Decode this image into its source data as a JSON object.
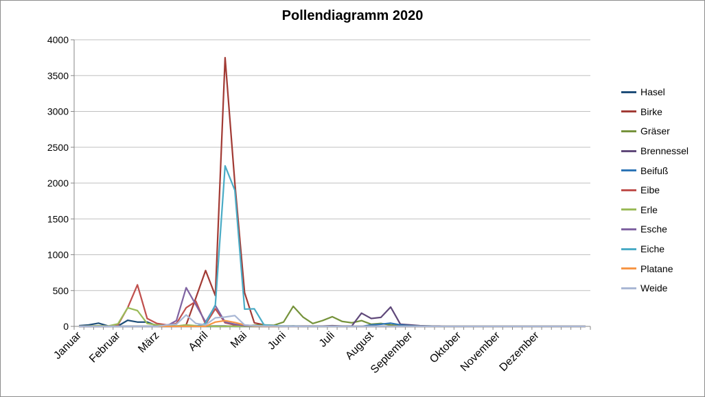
{
  "chart_data": {
    "type": "line",
    "title": "Pollendiagramm 2020",
    "ylim": [
      0,
      4000
    ],
    "yticks": [
      0,
      500,
      1000,
      1500,
      2000,
      2500,
      3000,
      3500,
      4000
    ],
    "x_points": 53,
    "months": [
      "Januar",
      "Februar",
      "März",
      "April",
      "Mai",
      "Juni",
      "Juli",
      "August",
      "September",
      "Oktober",
      "November",
      "Dezember"
    ],
    "month_start_index": [
      0,
      4,
      8,
      13,
      17,
      21,
      26,
      30,
      34,
      39,
      43,
      47
    ],
    "grid": true,
    "legend_position": "right",
    "series": [
      {
        "name": "Hasel",
        "color": "#1f4e79",
        "values": [
          10,
          20,
          45,
          5,
          5,
          85,
          60,
          60,
          10,
          10,
          5,
          5,
          5,
          5,
          5,
          5,
          0,
          0,
          0,
          0,
          0,
          0,
          0,
          0,
          0,
          0,
          0,
          0,
          0,
          0,
          0,
          0,
          0,
          0,
          0,
          0,
          0,
          0,
          0,
          0,
          0,
          0,
          0,
          0,
          0,
          0,
          0,
          0,
          0,
          0,
          0,
          0,
          0
        ]
      },
      {
        "name": "Birke",
        "color": "#a23b35",
        "values": [
          0,
          0,
          0,
          0,
          0,
          0,
          0,
          0,
          0,
          0,
          0,
          20,
          400,
          780,
          430,
          3750,
          2000,
          470,
          50,
          20,
          5,
          5,
          5,
          0,
          0,
          0,
          0,
          0,
          0,
          0,
          0,
          0,
          0,
          0,
          0,
          0,
          0,
          0,
          0,
          0,
          0,
          0,
          0,
          0,
          0,
          0,
          0,
          0,
          0,
          0,
          0,
          0,
          0
        ]
      },
      {
        "name": "Gräser",
        "color": "#76933c",
        "values": [
          0,
          0,
          0,
          0,
          0,
          0,
          0,
          0,
          0,
          0,
          0,
          0,
          0,
          0,
          0,
          0,
          5,
          10,
          15,
          20,
          15,
          60,
          280,
          130,
          40,
          80,
          135,
          70,
          50,
          80,
          30,
          40,
          20,
          10,
          5,
          5,
          5,
          0,
          0,
          0,
          0,
          0,
          0,
          0,
          0,
          0,
          0,
          0,
          0,
          0,
          0,
          0,
          0
        ]
      },
      {
        "name": "Brennessel",
        "color": "#60497a",
        "values": [
          0,
          0,
          0,
          0,
          0,
          0,
          0,
          0,
          0,
          0,
          0,
          0,
          0,
          0,
          0,
          0,
          0,
          0,
          0,
          0,
          0,
          0,
          5,
          5,
          5,
          5,
          10,
          5,
          5,
          185,
          110,
          125,
          270,
          30,
          20,
          10,
          5,
          5,
          0,
          0,
          0,
          0,
          0,
          0,
          0,
          0,
          0,
          0,
          0,
          0,
          0,
          0,
          0
        ]
      },
      {
        "name": "Beifuß",
        "color": "#2e75b6",
        "values": [
          0,
          0,
          0,
          0,
          0,
          0,
          0,
          0,
          0,
          0,
          0,
          0,
          0,
          0,
          0,
          0,
          0,
          0,
          0,
          0,
          0,
          0,
          0,
          0,
          0,
          0,
          0,
          0,
          0,
          0,
          20,
          30,
          45,
          20,
          10,
          5,
          5,
          0,
          0,
          0,
          0,
          0,
          0,
          0,
          0,
          0,
          0,
          0,
          0,
          0,
          0,
          0,
          0
        ]
      },
      {
        "name": "Eibe",
        "color": "#c0504d",
        "values": [
          0,
          0,
          0,
          0,
          20,
          260,
          580,
          110,
          40,
          20,
          40,
          260,
          350,
          30,
          245,
          50,
          20,
          5,
          0,
          0,
          0,
          0,
          0,
          0,
          0,
          0,
          0,
          0,
          0,
          0,
          0,
          0,
          0,
          0,
          0,
          0,
          0,
          0,
          0,
          0,
          0,
          0,
          0,
          0,
          0,
          0,
          0,
          0,
          0,
          0,
          0,
          0,
          0
        ]
      },
      {
        "name": "Erle",
        "color": "#9bbb59",
        "values": [
          0,
          5,
          10,
          5,
          35,
          260,
          220,
          40,
          20,
          10,
          5,
          20,
          10,
          5,
          0,
          0,
          0,
          0,
          0,
          0,
          0,
          0,
          0,
          0,
          0,
          0,
          0,
          0,
          0,
          0,
          0,
          0,
          0,
          0,
          0,
          0,
          0,
          0,
          0,
          0,
          0,
          0,
          0,
          0,
          0,
          0,
          0,
          0,
          0,
          0,
          0,
          0,
          0
        ]
      },
      {
        "name": "Esche",
        "color": "#8064a2",
        "values": [
          0,
          0,
          0,
          0,
          0,
          0,
          0,
          0,
          0,
          5,
          80,
          540,
          300,
          60,
          290,
          60,
          30,
          10,
          5,
          0,
          0,
          0,
          0,
          0,
          0,
          0,
          0,
          0,
          0,
          0,
          0,
          0,
          0,
          0,
          0,
          0,
          0,
          0,
          0,
          0,
          0,
          0,
          0,
          0,
          0,
          0,
          0,
          0,
          0,
          0,
          0,
          0,
          0
        ]
      },
      {
        "name": "Eiche",
        "color": "#4bacc6",
        "values": [
          0,
          0,
          0,
          0,
          0,
          0,
          0,
          0,
          0,
          0,
          0,
          0,
          0,
          40,
          300,
          2240,
          1900,
          240,
          245,
          20,
          10,
          5,
          5,
          0,
          0,
          0,
          0,
          0,
          0,
          0,
          0,
          0,
          0,
          0,
          0,
          0,
          0,
          0,
          0,
          0,
          0,
          0,
          0,
          0,
          0,
          0,
          0,
          0,
          0,
          0,
          0,
          0,
          0
        ]
      },
      {
        "name": "Platane",
        "color": "#f79646",
        "values": [
          0,
          0,
          0,
          0,
          0,
          0,
          0,
          0,
          0,
          0,
          0,
          0,
          0,
          0,
          60,
          80,
          55,
          20,
          5,
          0,
          0,
          0,
          0,
          0,
          0,
          0,
          0,
          0,
          0,
          0,
          0,
          0,
          0,
          0,
          0,
          0,
          0,
          0,
          0,
          0,
          0,
          0,
          0,
          0,
          0,
          0,
          0,
          0,
          0,
          0,
          0,
          0,
          0
        ]
      },
      {
        "name": "Weide",
        "color": "#a9b7d5",
        "values": [
          0,
          0,
          0,
          0,
          0,
          0,
          0,
          0,
          0,
          20,
          30,
          160,
          40,
          20,
          120,
          130,
          150,
          20,
          10,
          5,
          5,
          0,
          0,
          0,
          0,
          0,
          0,
          0,
          0,
          0,
          0,
          0,
          0,
          0,
          0,
          0,
          0,
          0,
          0,
          0,
          0,
          0,
          0,
          0,
          0,
          0,
          0,
          0,
          0,
          0,
          0,
          0,
          0
        ]
      }
    ]
  }
}
